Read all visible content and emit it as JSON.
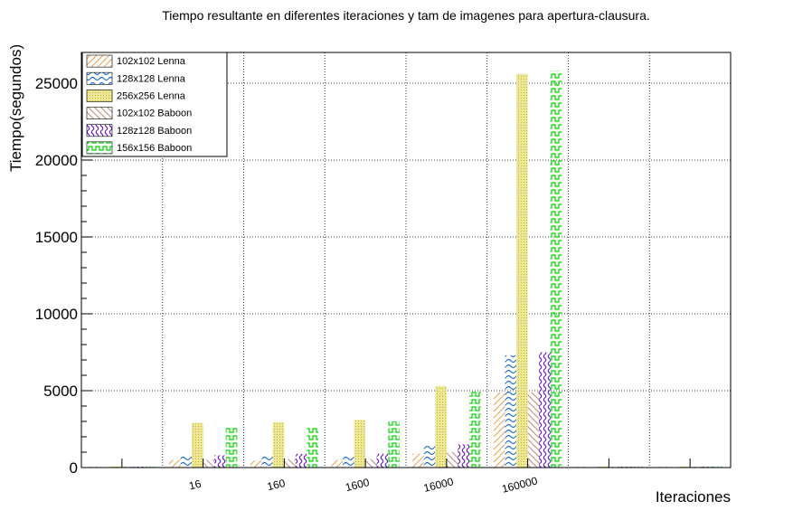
{
  "chart_data": {
    "type": "bar",
    "title": "Tiempo resultante en diferentes iteraciones y tam de imagenes para apertura-clausura.",
    "xlabel": "Iteraciones",
    "ylabel": "Tiempo(segundos)",
    "categories": [
      "",
      "16",
      "160",
      "1600",
      "16000",
      "160000",
      "",
      ""
    ],
    "ylim": [
      0,
      27000
    ],
    "yticks": [
      0,
      5000,
      10000,
      15000,
      20000,
      25000
    ],
    "grid": true,
    "legend_position": "top-left",
    "series": [
      {
        "name": "102x102 Lenna",
        "pattern": "diag-up",
        "color": "#e8a050",
        "values": [
          0,
          500,
          450,
          500,
          900,
          4900,
          0,
          0
        ]
      },
      {
        "name": "128x128 Lenna",
        "pattern": "wave",
        "color": "#1e6fd0",
        "values": [
          0,
          750,
          750,
          750,
          1400,
          7300,
          0,
          0
        ]
      },
      {
        "name": "256x256 Lenna",
        "pattern": "dots",
        "color": "#d4cc20",
        "values": [
          0,
          2900,
          2950,
          3100,
          5300,
          25600,
          0,
          0
        ]
      },
      {
        "name": "102x102 Baboon",
        "pattern": "diag-down",
        "color": "#c08a7a",
        "values": [
          0,
          500,
          550,
          550,
          1000,
          4900,
          0,
          0
        ]
      },
      {
        "name": "128z128 Baboon",
        "pattern": "wave",
        "color": "#6a18c8",
        "values": [
          0,
          800,
          900,
          900,
          1500,
          7500,
          0,
          0
        ]
      },
      {
        "name": "156x156 Baboon",
        "pattern": "steps",
        "color": "#22dd22",
        "values": [
          0,
          2600,
          2700,
          3000,
          5000,
          25800,
          0,
          0
        ]
      }
    ]
  }
}
